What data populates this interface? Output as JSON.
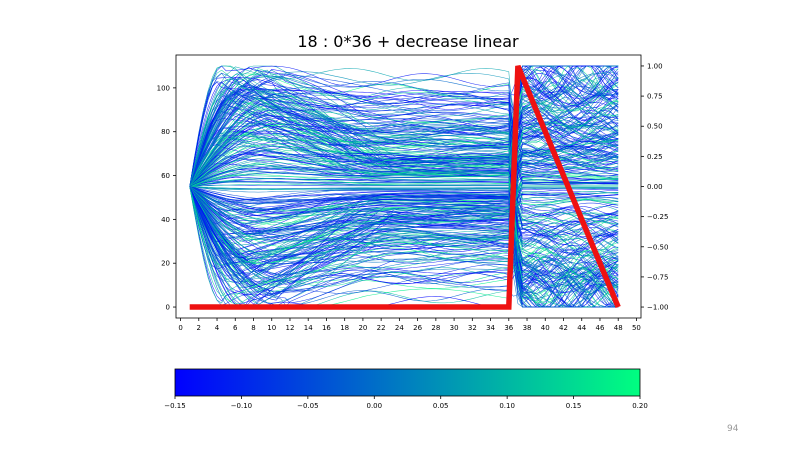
{
  "slide": {
    "page_number": "94"
  },
  "chart_data": {
    "type": "line",
    "title": "18 : 0*36 + decrease linear",
    "xlabel": "",
    "ylabel_left": "",
    "ylabel_right": "",
    "xlim": [
      -0.5,
      50.5
    ],
    "ylim_left": [
      -5,
      115
    ],
    "ylim_right": [
      -1.0909,
      1.0909
    ],
    "x_ticks": [
      0,
      2,
      4,
      6,
      8,
      10,
      12,
      14,
      16,
      18,
      20,
      22,
      24,
      26,
      28,
      30,
      32,
      34,
      36,
      38,
      40,
      42,
      44,
      46,
      48,
      50
    ],
    "x_tick_labels": [
      "0",
      "2",
      "4",
      "6",
      "8",
      "10",
      "12",
      "14",
      "16",
      "18",
      "20",
      "22",
      "24",
      "26",
      "28",
      "30",
      "32",
      "34",
      "36",
      "38",
      "40",
      "42",
      "44",
      "46",
      "48",
      "50"
    ],
    "y_left_ticks": [
      0,
      20,
      40,
      60,
      80,
      100
    ],
    "y_left_tick_labels": [
      "0",
      "20",
      "40",
      "60",
      "80",
      "100"
    ],
    "y_right_ticks": [
      -1.0,
      -0.75,
      -0.5,
      -0.25,
      0.0,
      0.25,
      0.5,
      0.75,
      1.0
    ],
    "y_right_tick_labels": [
      "−1.00",
      "−0.75",
      "−0.50",
      "−0.25",
      "0.00",
      "0.25",
      "0.50",
      "0.75",
      "1.00"
    ],
    "reward_series": {
      "color": "#ee1111",
      "x": [
        1,
        36,
        37,
        48
      ],
      "y_right": [
        -1.0,
        -1.0,
        1.0,
        -1.0
      ]
    },
    "trajectories": {
      "count": 360,
      "x_range": [
        1,
        48
      ],
      "y_center": 55,
      "y_range": [
        0,
        110
      ]
    },
    "colorbar": {
      "range": [
        -0.15,
        0.2
      ],
      "ticks": [
        -0.15,
        -0.1,
        -0.05,
        0.0,
        0.05,
        0.1,
        0.15,
        0.2
      ],
      "tick_labels": [
        "−0.15",
        "−0.10",
        "−0.05",
        "0.00",
        "0.05",
        "0.10",
        "0.15",
        "0.20"
      ],
      "color_low": "#0000ff",
      "color_high": "#00ff80"
    },
    "grid": false,
    "legend": "none"
  }
}
